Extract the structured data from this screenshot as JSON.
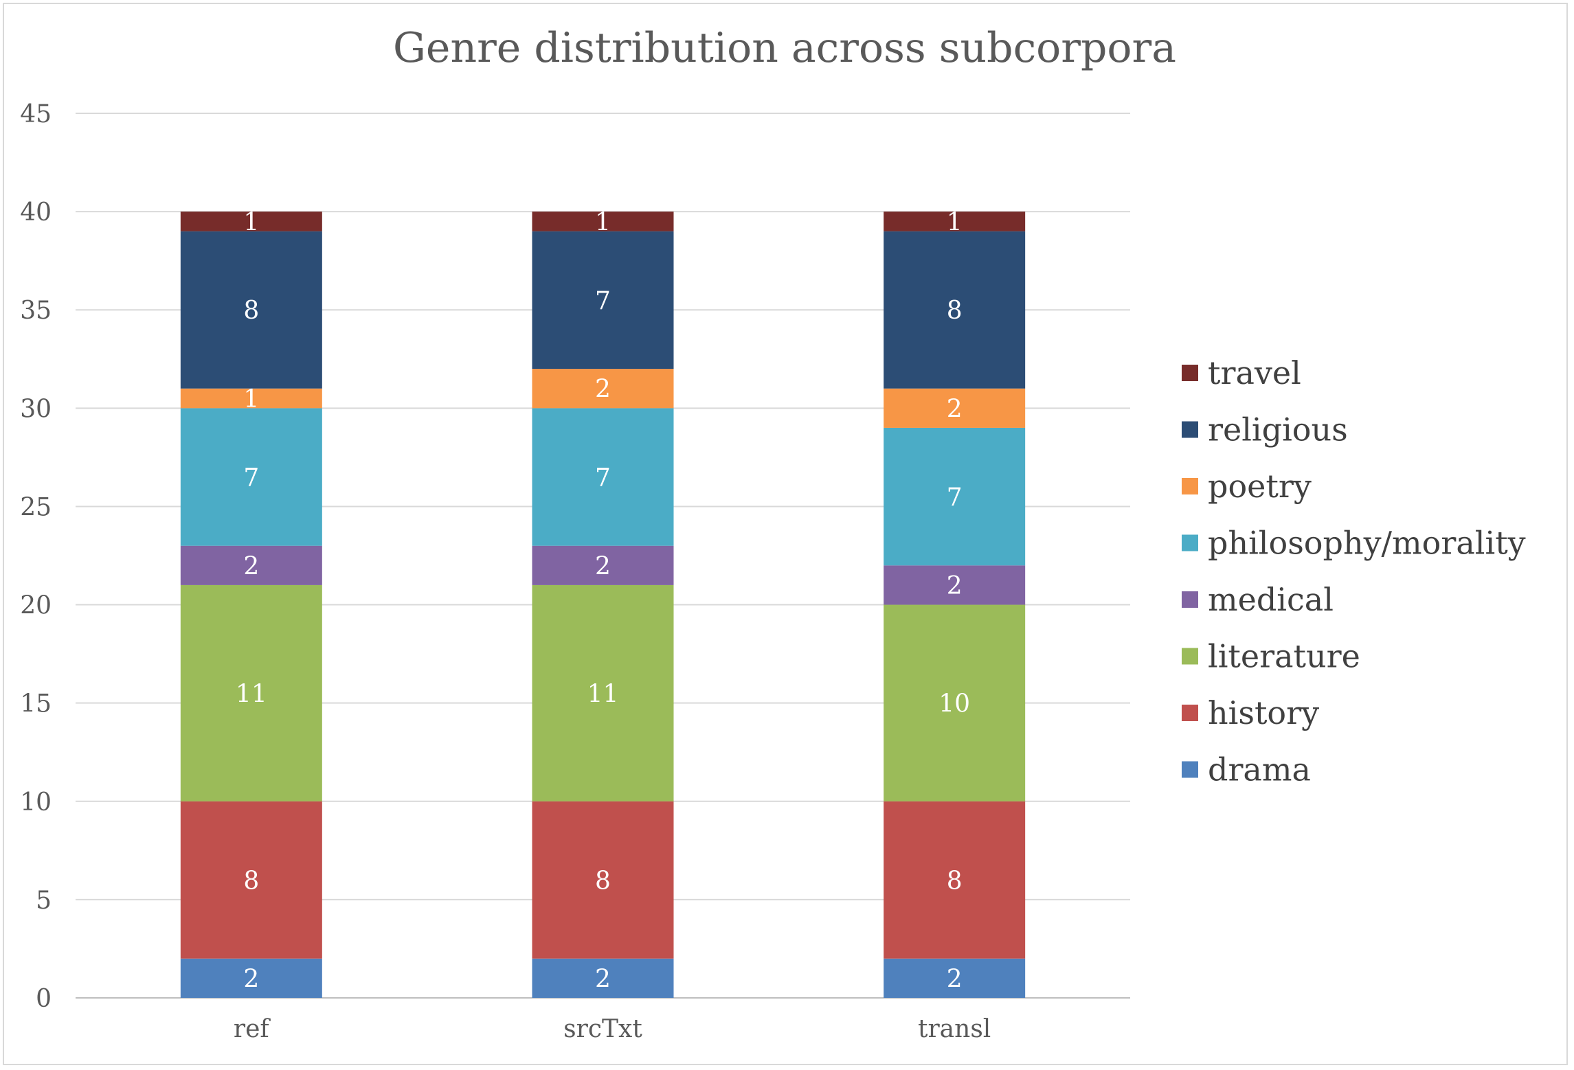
{
  "chart_data": {
    "type": "bar",
    "stacked": true,
    "title": "Genre distribution across subcorpora",
    "xlabel": "",
    "ylabel": "",
    "ylim": [
      0,
      45
    ],
    "yticks": [
      0,
      5,
      10,
      15,
      20,
      25,
      30,
      35,
      40,
      45
    ],
    "grid": true,
    "legend": "right",
    "categories": [
      "ref",
      "srcTxt",
      "transl"
    ],
    "series": [
      {
        "name": "drama",
        "color": "#4f81bd",
        "values": [
          2,
          2,
          2
        ]
      },
      {
        "name": "history",
        "color": "#c0504d",
        "values": [
          8,
          8,
          8
        ]
      },
      {
        "name": "literature",
        "color": "#9bbb59",
        "values": [
          11,
          11,
          10
        ]
      },
      {
        "name": "medical",
        "color": "#8064a2",
        "values": [
          2,
          2,
          2
        ]
      },
      {
        "name": "philosophy/morality",
        "color": "#4bacc6",
        "values": [
          7,
          7,
          7
        ]
      },
      {
        "name": "poetry",
        "color": "#f79646",
        "values": [
          1,
          2,
          2
        ]
      },
      {
        "name": "religious",
        "color": "#2c4d75",
        "values": [
          8,
          7,
          8
        ]
      },
      {
        "name": "travel",
        "color": "#772c2a",
        "values": [
          1,
          1,
          1
        ]
      }
    ]
  }
}
